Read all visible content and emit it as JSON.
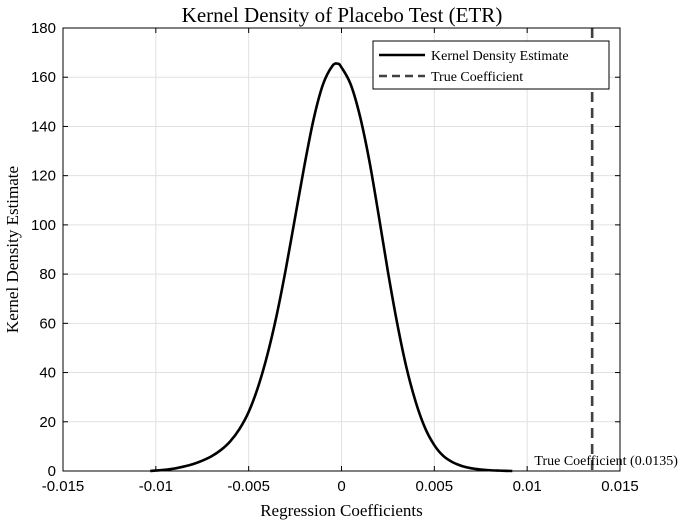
{
  "chart_data": {
    "type": "line",
    "title": "Kernel Density of Placebo Test (ETR)",
    "xlabel": "Regression Coefficients",
    "ylabel": "Kernel Density Estimate",
    "xlim": [
      -0.015,
      0.015
    ],
    "ylim": [
      0,
      180
    ],
    "xticks": [
      -0.015,
      -0.01,
      -0.005,
      0,
      0.005,
      0.01,
      0.015
    ],
    "xtick_labels": [
      "-0.015",
      "-0.01",
      "-0.005",
      "0",
      "0.005",
      "0.01",
      "0.015"
    ],
    "yticks": [
      0,
      20,
      40,
      60,
      80,
      100,
      120,
      140,
      160,
      180
    ],
    "ytick_labels": [
      "0",
      "20",
      "40",
      "60",
      "80",
      "100",
      "120",
      "140",
      "160",
      "180"
    ],
    "grid": true,
    "legend_position": "top-right",
    "series": [
      {
        "name": "Kernel Density Estimate",
        "style": "solid",
        "color": "#000000",
        "points": [
          [
            -0.0103,
            0
          ],
          [
            -0.0095,
            0.5
          ],
          [
            -0.009,
            1
          ],
          [
            -0.0085,
            1.8
          ],
          [
            -0.008,
            2.8
          ],
          [
            -0.0075,
            4.2
          ],
          [
            -0.007,
            6
          ],
          [
            -0.0065,
            8.5
          ],
          [
            -0.006,
            12
          ],
          [
            -0.0055,
            17
          ],
          [
            -0.005,
            24
          ],
          [
            -0.0045,
            34
          ],
          [
            -0.004,
            47
          ],
          [
            -0.0035,
            63
          ],
          [
            -0.003,
            82
          ],
          [
            -0.0025,
            103
          ],
          [
            -0.002,
            124
          ],
          [
            -0.0015,
            143
          ],
          [
            -0.001,
            157
          ],
          [
            -0.0005,
            164.5
          ],
          [
            -0.0002,
            165.5
          ],
          [
            0,
            164
          ],
          [
            0.0005,
            157
          ],
          [
            0.001,
            144
          ],
          [
            0.0015,
            126
          ],
          [
            0.002,
            104
          ],
          [
            0.0025,
            81
          ],
          [
            0.003,
            60
          ],
          [
            0.0035,
            42
          ],
          [
            0.004,
            28
          ],
          [
            0.0045,
            17.5
          ],
          [
            0.005,
            10.5
          ],
          [
            0.0055,
            6
          ],
          [
            0.006,
            3.5
          ],
          [
            0.0065,
            2
          ],
          [
            0.007,
            1.1
          ],
          [
            0.0075,
            0.6
          ],
          [
            0.008,
            0.3
          ],
          [
            0.0085,
            0.15
          ],
          [
            0.0092,
            0
          ]
        ]
      },
      {
        "name": "True Coefficient",
        "style": "dashed",
        "color": "#404040",
        "x": 0.0135
      }
    ],
    "annotations": [
      {
        "text": "True Coefficient (0.0135)",
        "x": 0.0135,
        "y": 0
      }
    ]
  }
}
